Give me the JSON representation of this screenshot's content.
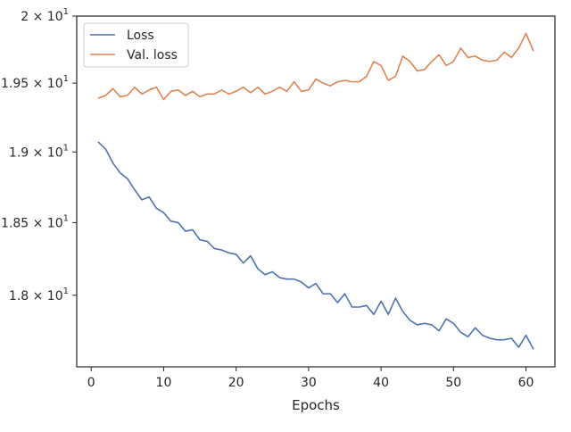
{
  "chart_data": {
    "type": "line",
    "title": "",
    "xlabel": "Epochs",
    "ylabel": "",
    "xlim": [
      -2,
      64
    ],
    "ylim": [
      17.52,
      20.0
    ],
    "yscale": "log",
    "grid": false,
    "legend_position": "top-left",
    "x_ticks": [
      0,
      10,
      20,
      30,
      40,
      50,
      60
    ],
    "x_tick_labels": [
      "0",
      "10",
      "20",
      "30",
      "40",
      "50",
      "60"
    ],
    "y_ticks": [
      18.0,
      18.5,
      19.0,
      19.5,
      20.0
    ],
    "y_tick_labels": [
      {
        "mantissa": "1.8",
        "exp": "1"
      },
      {
        "mantissa": "1.85",
        "exp": "1"
      },
      {
        "mantissa": "1.9",
        "exp": "1"
      },
      {
        "mantissa": "1.95",
        "exp": "1"
      },
      {
        "mantissa": "2",
        "exp": "1"
      }
    ],
    "x": [
      1,
      2,
      3,
      4,
      5,
      6,
      7,
      8,
      9,
      10,
      11,
      12,
      13,
      14,
      15,
      16,
      17,
      18,
      19,
      20,
      21,
      22,
      23,
      24,
      25,
      26,
      27,
      28,
      29,
      30,
      31,
      32,
      33,
      34,
      35,
      36,
      37,
      38,
      39,
      40,
      41,
      42,
      43,
      44,
      45,
      46,
      47,
      48,
      49,
      50,
      51,
      52,
      53,
      54,
      55,
      56,
      57,
      58,
      59,
      60,
      61
    ],
    "series": [
      {
        "name": "Loss",
        "color": "#4c72b0",
        "values": [
          19.07,
          19.02,
          18.92,
          18.85,
          18.81,
          18.73,
          18.66,
          18.68,
          18.6,
          18.57,
          18.51,
          18.5,
          18.44,
          18.45,
          18.38,
          18.37,
          18.32,
          18.31,
          18.29,
          18.28,
          18.22,
          18.27,
          18.18,
          18.14,
          18.16,
          18.12,
          18.11,
          18.11,
          18.09,
          18.05,
          18.08,
          18.01,
          18.01,
          17.95,
          18.01,
          17.92,
          17.92,
          17.93,
          17.87,
          17.96,
          17.87,
          17.98,
          17.89,
          17.83,
          17.8,
          17.81,
          17.8,
          17.76,
          17.84,
          17.81,
          17.75,
          17.72,
          17.78,
          17.73,
          17.71,
          17.7,
          17.7,
          17.71,
          17.65,
          17.73,
          17.64
        ]
      },
      {
        "name": "Val. loss",
        "color": "#dd8452",
        "values": [
          19.39,
          19.41,
          19.46,
          19.4,
          19.41,
          19.47,
          19.42,
          19.45,
          19.47,
          19.38,
          19.44,
          19.45,
          19.41,
          19.44,
          19.4,
          19.42,
          19.42,
          19.45,
          19.42,
          19.44,
          19.47,
          19.43,
          19.47,
          19.42,
          19.44,
          19.47,
          19.44,
          19.51,
          19.44,
          19.45,
          19.53,
          19.5,
          19.48,
          19.51,
          19.52,
          19.51,
          19.51,
          19.55,
          19.66,
          19.63,
          19.52,
          19.55,
          19.7,
          19.66,
          19.59,
          19.6,
          19.66,
          19.71,
          19.63,
          19.66,
          19.76,
          19.69,
          19.7,
          19.67,
          19.66,
          19.67,
          19.73,
          19.69,
          19.76,
          19.87,
          19.74
        ]
      }
    ]
  }
}
